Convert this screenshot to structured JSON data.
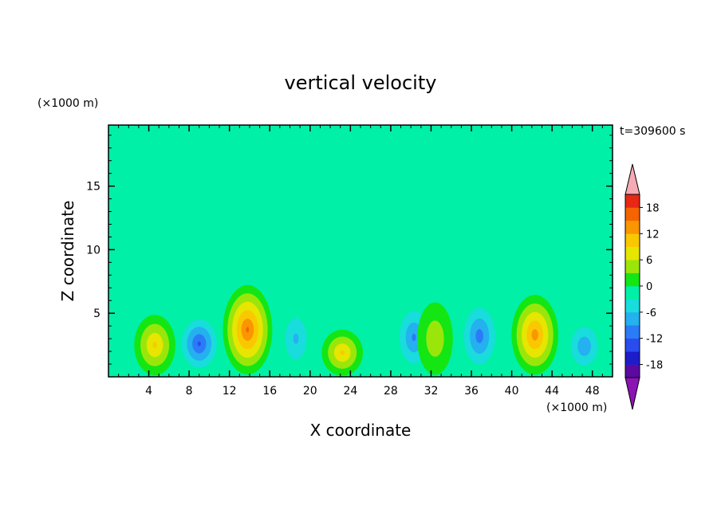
{
  "chart_data": {
    "type": "heatmap",
    "title": "vertical velocity",
    "xlabel": "X coordinate",
    "ylabel": "Z coordinate",
    "x_unit": "(×1000 m)",
    "y_unit": "(×1000 m)",
    "time_label": "t=309600 s",
    "xlim": [
      0,
      50
    ],
    "ylim": [
      0,
      19.8
    ],
    "x_ticks": [
      4,
      8,
      12,
      16,
      20,
      24,
      28,
      32,
      36,
      40,
      44,
      48
    ],
    "x_tick_labels": [
      "4",
      "8",
      "12",
      "16",
      "20",
      "24",
      "28",
      "32",
      "36",
      "40",
      "44",
      "48"
    ],
    "y_ticks": [
      5,
      10,
      15
    ],
    "y_tick_labels": [
      "5",
      "10",
      "15"
    ],
    "colorbar": {
      "tick_values": [
        18,
        12,
        6,
        0,
        -6,
        -12,
        -18
      ],
      "tick_labels": [
        "18",
        "12",
        "6",
        "0",
        "-6",
        "-12",
        "-18"
      ],
      "levels": [
        -21,
        -18,
        -15,
        -12,
        -9,
        -6,
        -3,
        0,
        3,
        6,
        9,
        12,
        15,
        18,
        21
      ],
      "colors": [
        "#5a0aa0",
        "#1c1cc8",
        "#2a4cee",
        "#2a7cf6",
        "#25b0f0",
        "#19dcdc",
        "#00f0a8",
        "#14e614",
        "#9be60a",
        "#e6e600",
        "#fac800",
        "#fa9600",
        "#f56400",
        "#e62814"
      ],
      "under_color": "#8c14b4",
      "over_color": "#f5aab4"
    },
    "features": [
      {
        "x": 4.6,
        "z": 2.5,
        "peak": 10
      },
      {
        "x": 9.0,
        "z": 2.6,
        "peak": -13
      },
      {
        "x": 13.8,
        "z": 3.7,
        "peak": 16
      },
      {
        "x": 18.6,
        "z": 3.0,
        "peak": -7
      },
      {
        "x": 23.2,
        "z": 1.9,
        "peak": 10
      },
      {
        "x": 30.3,
        "z": 3.1,
        "peak": -10
      },
      {
        "x": 32.4,
        "z": 3.0,
        "peak": 6
      },
      {
        "x": 36.8,
        "z": 3.2,
        "peak": -11
      },
      {
        "x": 42.3,
        "z": 3.3,
        "peak": 14
      },
      {
        "x": 47.2,
        "z": 2.4,
        "peak": -9
      }
    ]
  }
}
